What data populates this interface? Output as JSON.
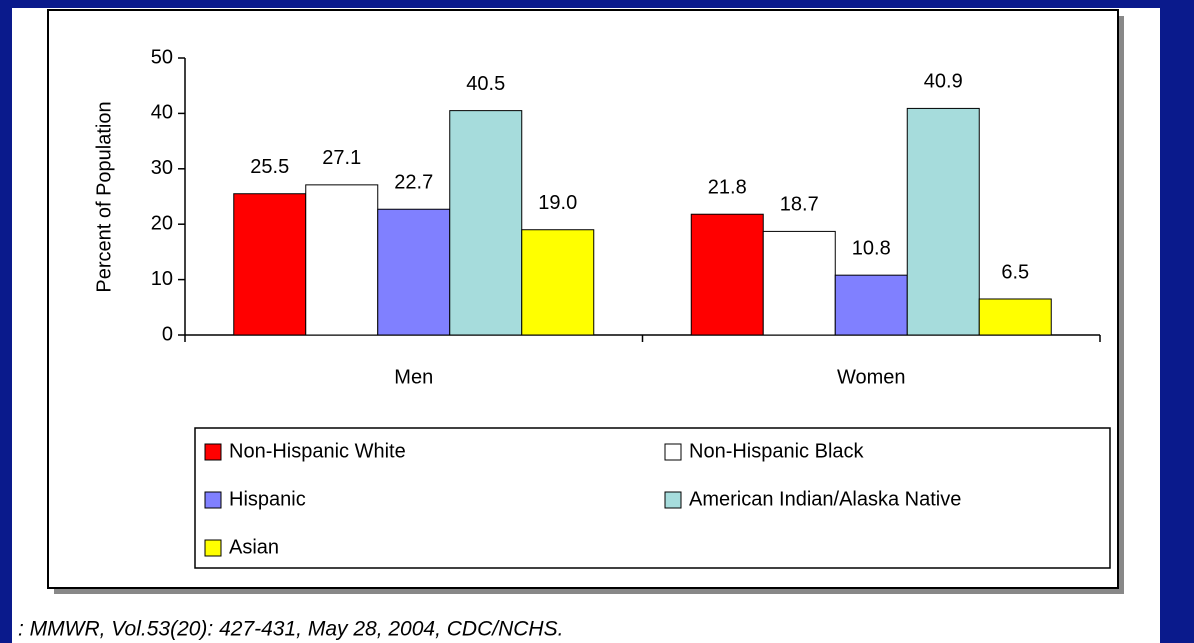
{
  "chart_data": {
    "type": "bar",
    "ylabel": "Percent of Population",
    "categories": [
      "Men",
      "Women"
    ],
    "series": [
      {
        "name": "Non-Hispanic White",
        "color": "#ff0000",
        "values": [
          25.5,
          21.8
        ],
        "value_labels": [
          "25.5",
          "21.8"
        ]
      },
      {
        "name": "Non-Hispanic Black",
        "color": "#ffffff",
        "values": [
          27.1,
          18.7
        ],
        "value_labels": [
          "27.1",
          "18.7"
        ]
      },
      {
        "name": "Hispanic",
        "color": "#8080ff",
        "values": [
          22.7,
          10.8
        ],
        "value_labels": [
          "22.7",
          "10.8"
        ]
      },
      {
        "name": "American Indian/Alaska Native",
        "color": "#a6dcdc",
        "values": [
          40.5,
          40.9
        ],
        "value_labels": [
          "40.5",
          "40.9"
        ]
      },
      {
        "name": "Asian",
        "color": "#ffff00",
        "values": [
          19.0,
          6.5
        ],
        "value_labels": [
          "19.0",
          "6.5"
        ]
      }
    ],
    "ylim": [
      0,
      50
    ],
    "yticks": [
      0,
      10,
      20,
      30,
      40,
      50
    ],
    "grid": false,
    "source": ": MMWR, Vol.53(20): 427-431, May 28, 2004, CDC/NCHS."
  }
}
